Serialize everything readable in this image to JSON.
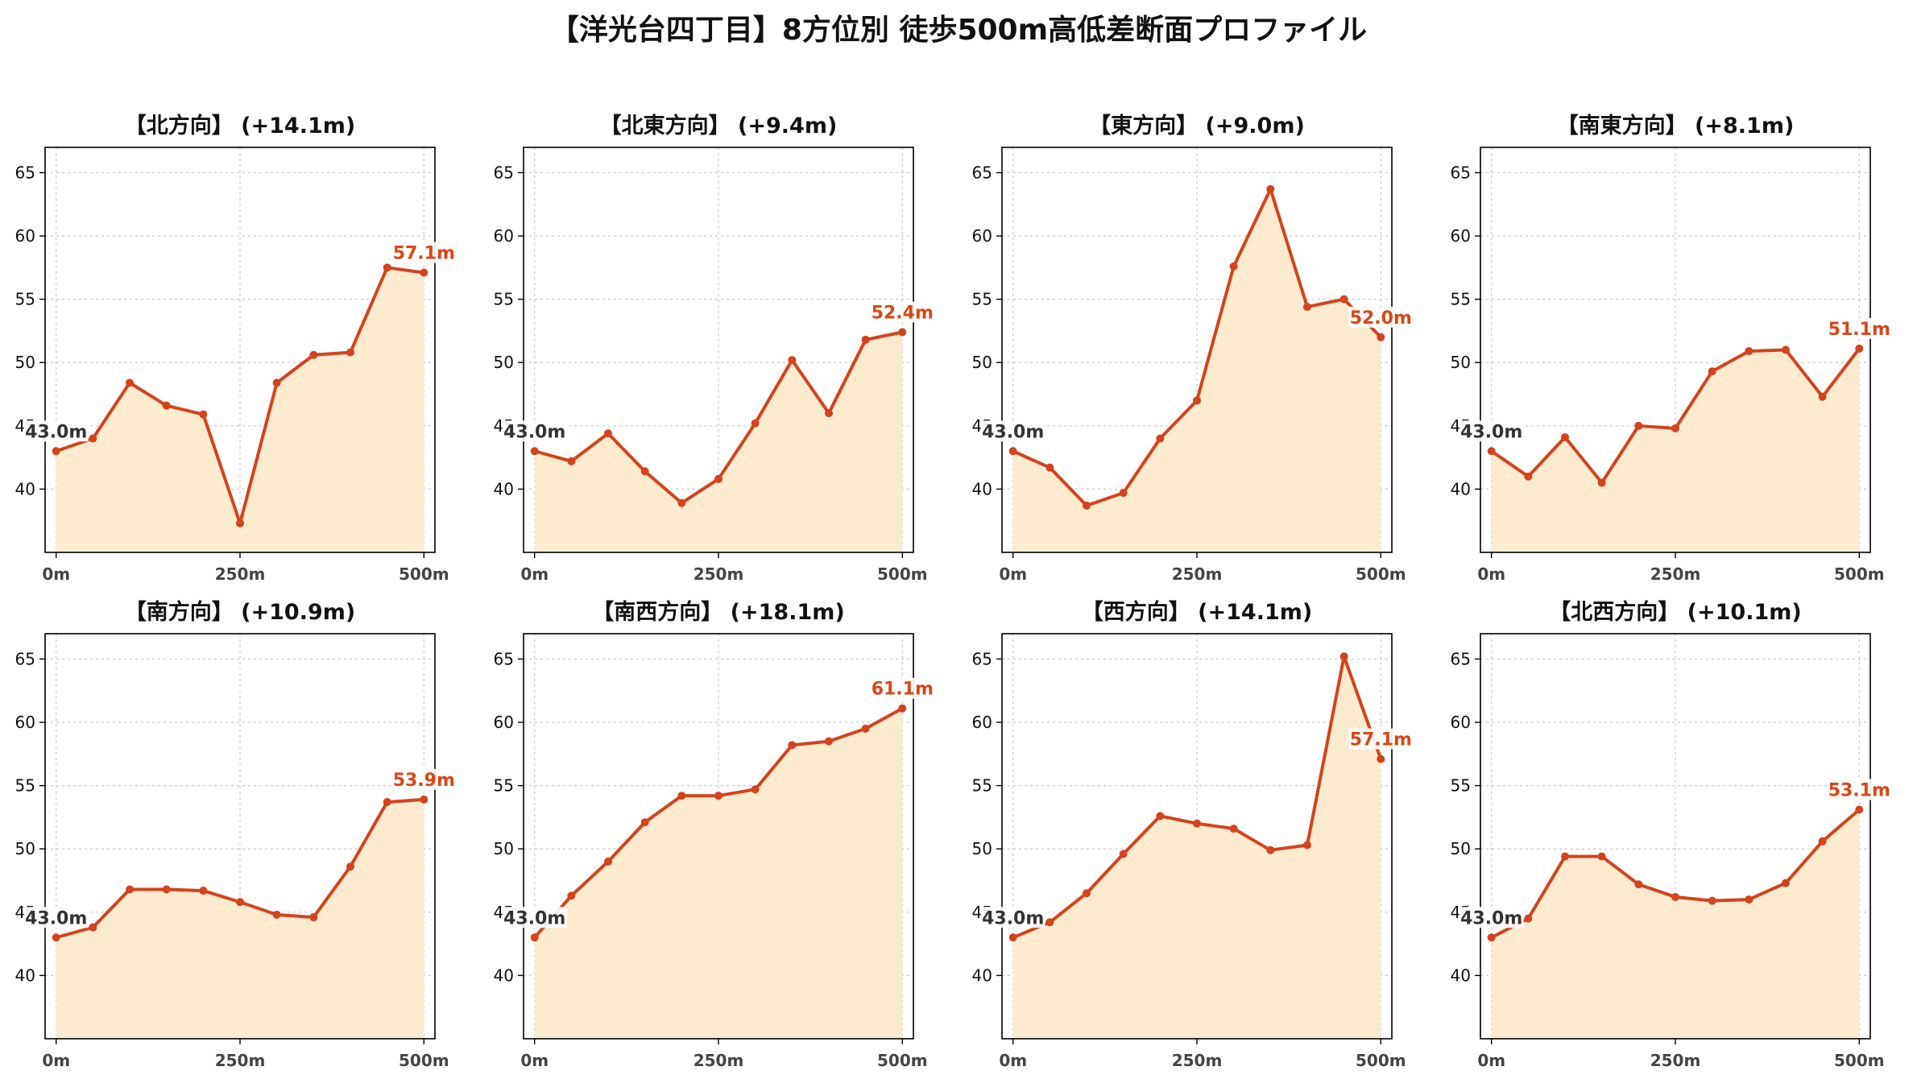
{
  "title": "【洋光台四丁目】8方位別 徒歩500m高低差断面プロファイル",
  "colors": {
    "line": "#d4431b",
    "fill": "#fdebd0",
    "grid": "#c8c8c8",
    "end_label": "#d94616",
    "start_label": "#333333"
  },
  "chart_data": [
    {
      "type": "area",
      "title": "【北方向】 (+14.1m)",
      "x": [
        0,
        50,
        100,
        150,
        200,
        250,
        300,
        350,
        400,
        450,
        500
      ],
      "values": [
        43.0,
        44.0,
        48.4,
        46.6,
        45.9,
        37.3,
        48.4,
        50.6,
        50.8,
        57.5,
        57.1
      ],
      "start_label": "43.0m",
      "end_label": "57.1m",
      "xticks": [
        "0m",
        "250m",
        "500m"
      ],
      "yticks": [
        40,
        45,
        50,
        55,
        60,
        65
      ],
      "xlim": [
        -15,
        515
      ],
      "ylim": [
        35,
        67
      ],
      "grid": true
    },
    {
      "type": "area",
      "title": "【北東方向】 (+9.4m)",
      "x": [
        0,
        50,
        100,
        150,
        200,
        250,
        300,
        350,
        400,
        450,
        500
      ],
      "values": [
        43.0,
        42.2,
        44.4,
        41.4,
        38.9,
        40.8,
        45.2,
        50.2,
        46.0,
        51.8,
        52.4
      ],
      "start_label": "43.0m",
      "end_label": "52.4m",
      "xticks": [
        "0m",
        "250m",
        "500m"
      ],
      "yticks": [
        40,
        45,
        50,
        55,
        60,
        65
      ],
      "xlim": [
        -15,
        515
      ],
      "ylim": [
        35,
        67
      ],
      "grid": true
    },
    {
      "type": "area",
      "title": "【東方向】 (+9.0m)",
      "x": [
        0,
        50,
        100,
        150,
        200,
        250,
        300,
        350,
        400,
        450,
        500
      ],
      "values": [
        43.0,
        41.7,
        38.7,
        39.7,
        44.0,
        47.0,
        57.6,
        63.7,
        54.4,
        55.0,
        52.0
      ],
      "start_label": "43.0m",
      "end_label": "52.0m",
      "xticks": [
        "0m",
        "250m",
        "500m"
      ],
      "yticks": [
        40,
        45,
        50,
        55,
        60,
        65
      ],
      "xlim": [
        -15,
        515
      ],
      "ylim": [
        35,
        67
      ],
      "grid": true
    },
    {
      "type": "area",
      "title": "【南東方向】 (+8.1m)",
      "x": [
        0,
        50,
        100,
        150,
        200,
        250,
        300,
        350,
        400,
        450,
        500
      ],
      "values": [
        43.0,
        41.0,
        44.1,
        40.5,
        45.0,
        44.8,
        49.3,
        50.9,
        51.0,
        47.3,
        51.1
      ],
      "start_label": "43.0m",
      "end_label": "51.1m",
      "xticks": [
        "0m",
        "250m",
        "500m"
      ],
      "yticks": [
        40,
        45,
        50,
        55,
        60,
        65
      ],
      "xlim": [
        -15,
        515
      ],
      "ylim": [
        35,
        67
      ],
      "grid": true
    },
    {
      "type": "area",
      "title": "【南方向】 (+10.9m)",
      "x": [
        0,
        50,
        100,
        150,
        200,
        250,
        300,
        350,
        400,
        450,
        500
      ],
      "values": [
        43.0,
        43.8,
        46.8,
        46.8,
        46.7,
        45.8,
        44.8,
        44.6,
        48.6,
        53.7,
        53.9
      ],
      "start_label": "43.0m",
      "end_label": "53.9m",
      "xticks": [
        "0m",
        "250m",
        "500m"
      ],
      "yticks": [
        40,
        45,
        50,
        55,
        60,
        65
      ],
      "xlim": [
        -15,
        515
      ],
      "ylim": [
        35,
        67
      ],
      "grid": true
    },
    {
      "type": "area",
      "title": "【南西方向】 (+18.1m)",
      "x": [
        0,
        50,
        100,
        150,
        200,
        250,
        300,
        350,
        400,
        450,
        500
      ],
      "values": [
        43.0,
        46.3,
        49.0,
        52.1,
        54.2,
        54.2,
        54.7,
        58.2,
        58.5,
        59.5,
        61.1
      ],
      "start_label": "43.0m",
      "end_label": "61.1m",
      "xticks": [
        "0m",
        "250m",
        "500m"
      ],
      "yticks": [
        40,
        45,
        50,
        55,
        60,
        65
      ],
      "xlim": [
        -15,
        515
      ],
      "ylim": [
        35,
        67
      ],
      "grid": true
    },
    {
      "type": "area",
      "title": "【西方向】 (+14.1m)",
      "x": [
        0,
        50,
        100,
        150,
        200,
        250,
        300,
        350,
        400,
        450,
        500
      ],
      "values": [
        43.0,
        44.2,
        46.5,
        49.6,
        52.6,
        52.0,
        51.6,
        49.9,
        50.3,
        65.2,
        57.1
      ],
      "start_label": "43.0m",
      "end_label": "57.1m",
      "xticks": [
        "0m",
        "250m",
        "500m"
      ],
      "yticks": [
        40,
        45,
        50,
        55,
        60,
        65
      ],
      "xlim": [
        -15,
        515
      ],
      "ylim": [
        35,
        67
      ],
      "grid": true
    },
    {
      "type": "area",
      "title": "【北西方向】 (+10.1m)",
      "x": [
        0,
        50,
        100,
        150,
        200,
        250,
        300,
        350,
        400,
        450,
        500
      ],
      "values": [
        43.0,
        44.5,
        49.4,
        49.4,
        47.2,
        46.2,
        45.9,
        46.0,
        47.3,
        50.6,
        53.1
      ],
      "start_label": "43.0m",
      "end_label": "53.1m",
      "xticks": [
        "0m",
        "250m",
        "500m"
      ],
      "yticks": [
        40,
        45,
        50,
        55,
        60,
        65
      ],
      "xlim": [
        -15,
        515
      ],
      "ylim": [
        35,
        67
      ],
      "grid": true
    }
  ]
}
